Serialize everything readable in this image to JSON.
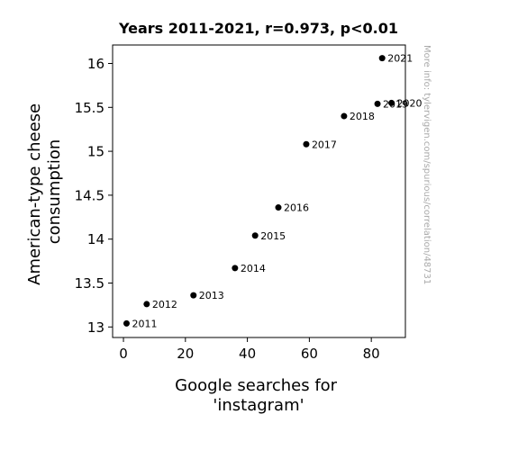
{
  "chart_data": {
    "type": "scatter",
    "title": "Years 2011-2021, r=0.973, p<0.01",
    "xlabel": [
      "Google searches for",
      "'instagram'"
    ],
    "ylabel": [
      "American-type cheese",
      "consumption"
    ],
    "xlim": [
      -3.5,
      91
    ],
    "ylim": [
      12.88,
      16.21
    ],
    "xticks": [
      0,
      20,
      40,
      60,
      80
    ],
    "yticks": [
      13,
      13.5,
      14,
      14.5,
      15,
      15.5,
      16
    ],
    "grid": false,
    "point_color": "#000000",
    "points": [
      {
        "label": "2011",
        "x": 1.0,
        "y": 13.04
      },
      {
        "label": "2012",
        "x": 7.5,
        "y": 13.26
      },
      {
        "label": "2013",
        "x": 22.6,
        "y": 13.36
      },
      {
        "label": "2014",
        "x": 36.0,
        "y": 13.67
      },
      {
        "label": "2015",
        "x": 42.5,
        "y": 14.04
      },
      {
        "label": "2016",
        "x": 50.0,
        "y": 14.36
      },
      {
        "label": "2017",
        "x": 59.0,
        "y": 15.08
      },
      {
        "label": "2018",
        "x": 71.2,
        "y": 15.4
      },
      {
        "label": "2019",
        "x": 82.0,
        "y": 15.54
      },
      {
        "label": "2020",
        "x": 86.5,
        "y": 15.55
      },
      {
        "label": "2021",
        "x": 83.5,
        "y": 16.06
      }
    ]
  },
  "watermark": "More info: tylervigen.com/spurious/correlation/48731"
}
